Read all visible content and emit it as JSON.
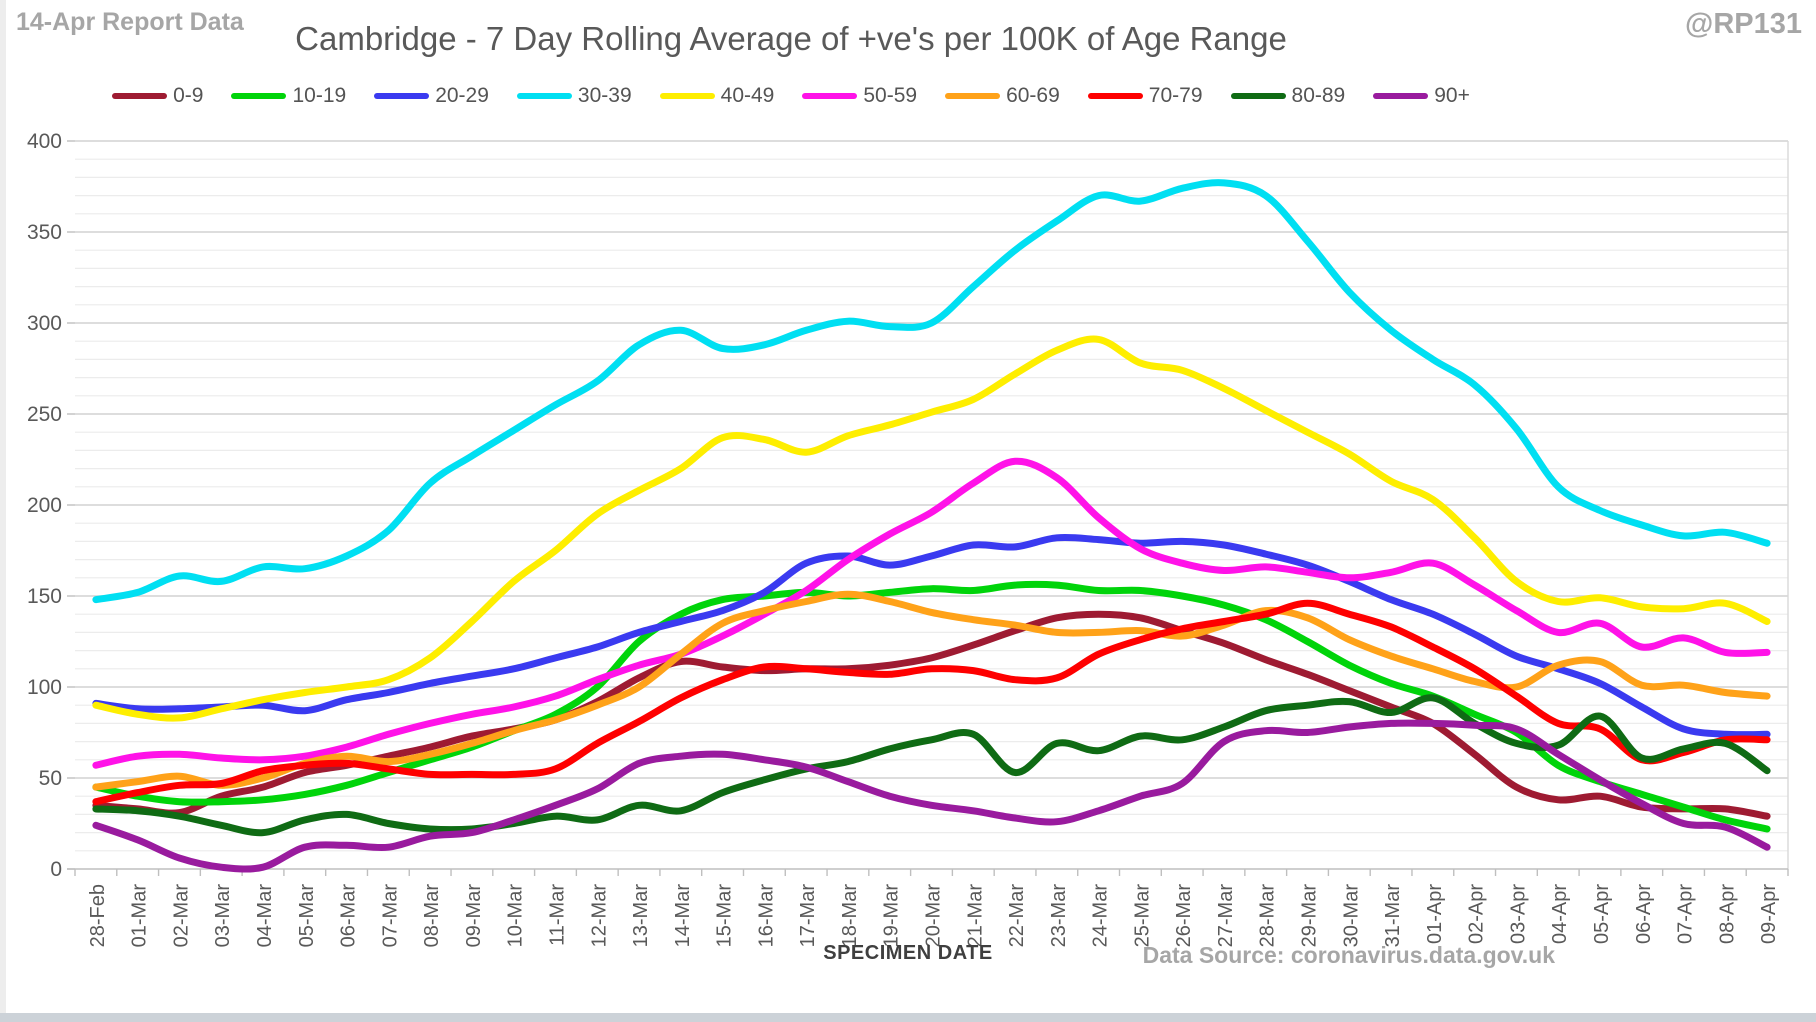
{
  "header": {
    "report_note": "14-Apr Report Data",
    "handle": "@RP131"
  },
  "footer": {
    "data_source": "Data Source: coronavirus.data.gov.uk"
  },
  "chart_data": {
    "type": "line",
    "title": "Cambridge - 7 Day Rolling Average of +ve's per 100K of Age Range",
    "xlabel": "SPECIMEN DATE",
    "ylabel": "",
    "ylim": [
      0,
      400
    ],
    "y_major_step": 50,
    "y_minor_step": 10,
    "grid": true,
    "legend_position": "top",
    "categories": [
      "28-Feb",
      "01-Mar",
      "02-Mar",
      "03-Mar",
      "04-Mar",
      "05-Mar",
      "06-Mar",
      "07-Mar",
      "08-Mar",
      "09-Mar",
      "10-Mar",
      "11-Mar",
      "12-Mar",
      "13-Mar",
      "14-Mar",
      "15-Mar",
      "16-Mar",
      "17-Mar",
      "18-Mar",
      "19-Mar",
      "20-Mar",
      "21-Mar",
      "22-Mar",
      "23-Mar",
      "24-Mar",
      "25-Mar",
      "26-Mar",
      "27-Mar",
      "28-Mar",
      "29-Mar",
      "30-Mar",
      "31-Mar",
      "01-Apr",
      "02-Apr",
      "03-Apr",
      "04-Apr",
      "05-Apr",
      "06-Apr",
      "07-Apr",
      "08-Apr",
      "09-Apr"
    ],
    "series": [
      {
        "name": "0-9",
        "color": "#9e1b32",
        "values": [
          35,
          33,
          31,
          40,
          45,
          53,
          57,
          62,
          67,
          73,
          77,
          82,
          92,
          105,
          114,
          111,
          109,
          110,
          110,
          112,
          116,
          123,
          131,
          138,
          140,
          138,
          131,
          124,
          115,
          107,
          98,
          89,
          80,
          63,
          45,
          38,
          40,
          34,
          33,
          33,
          29
        ]
      },
      {
        "name": "10-19",
        "color": "#00d40a",
        "values": [
          45,
          40,
          37,
          37,
          38,
          41,
          46,
          53,
          60,
          67,
          76,
          85,
          100,
          125,
          140,
          148,
          150,
          152,
          150,
          152,
          154,
          153,
          156,
          156,
          153,
          153,
          150,
          145,
          137,
          125,
          112,
          102,
          95,
          85,
          75,
          57,
          48,
          41,
          34,
          27,
          22
        ]
      },
      {
        "name": "20-29",
        "color": "#3a3af0",
        "values": [
          91,
          88,
          88,
          89,
          90,
          87,
          93,
          97,
          102,
          106,
          110,
          116,
          122,
          130,
          136,
          142,
          152,
          168,
          172,
          167,
          172,
          178,
          177,
          182,
          181,
          179,
          180,
          178,
          173,
          167,
          158,
          148,
          140,
          129,
          117,
          110,
          102,
          89,
          77,
          74,
          74
        ]
      },
      {
        "name": "30-39",
        "color": "#00dff2",
        "values": [
          148,
          152,
          161,
          158,
          166,
          165,
          172,
          186,
          212,
          227,
          241,
          255,
          268,
          288,
          296,
          286,
          288,
          296,
          301,
          298,
          300,
          320,
          340,
          356,
          370,
          367,
          374,
          377,
          370,
          345,
          317,
          296,
          280,
          266,
          242,
          210,
          197,
          189,
          183,
          185,
          179
        ]
      },
      {
        "name": "40-49",
        "color": "#feee00",
        "values": [
          90,
          85,
          83,
          88,
          93,
          97,
          100,
          104,
          116,
          136,
          158,
          175,
          195,
          208,
          220,
          237,
          236,
          229,
          238,
          244,
          251,
          258,
          272,
          285,
          291,
          278,
          274,
          264,
          252,
          240,
          228,
          213,
          203,
          182,
          158,
          147,
          149,
          144,
          143,
          146,
          136
        ]
      },
      {
        "name": "50-59",
        "color": "#ff12e8",
        "values": [
          57,
          62,
          63,
          61,
          60,
          62,
          67,
          74,
          80,
          85,
          89,
          95,
          104,
          112,
          118,
          128,
          140,
          153,
          170,
          184,
          196,
          212,
          224,
          215,
          193,
          176,
          168,
          164,
          166,
          163,
          160,
          163,
          168,
          156,
          142,
          130,
          135,
          122,
          127,
          119,
          119
        ]
      },
      {
        "name": "60-69",
        "color": "#ffa219",
        "values": [
          45,
          48,
          51,
          46,
          50,
          58,
          62,
          59,
          63,
          69,
          76,
          82,
          90,
          100,
          118,
          135,
          142,
          147,
          151,
          147,
          141,
          137,
          134,
          130,
          130,
          131,
          128,
          134,
          142,
          138,
          126,
          117,
          110,
          103,
          100,
          112,
          114,
          101,
          101,
          97,
          95
        ]
      },
      {
        "name": "70-79",
        "color": "#fe0000",
        "values": [
          37,
          42,
          46,
          47,
          54,
          57,
          58,
          55,
          52,
          52,
          52,
          55,
          69,
          81,
          94,
          104,
          111,
          110,
          108,
          107,
          110,
          109,
          104,
          105,
          118,
          126,
          132,
          136,
          140,
          146,
          140,
          133,
          122,
          110,
          95,
          80,
          77,
          60,
          64,
          71,
          71
        ]
      },
      {
        "name": "80-89",
        "color": "#0f6b14",
        "values": [
          33,
          32,
          29,
          24,
          20,
          27,
          30,
          25,
          22,
          22,
          25,
          29,
          27,
          35,
          32,
          42,
          49,
          55,
          59,
          66,
          71,
          74,
          53,
          69,
          65,
          73,
          71,
          78,
          87,
          90,
          92,
          86,
          94,
          80,
          69,
          68,
          84,
          61,
          66,
          69,
          54
        ]
      },
      {
        "name": "90+",
        "color": "#991b9e",
        "values": [
          24,
          16,
          6,
          1,
          1,
          12,
          13,
          12,
          18,
          20,
          27,
          35,
          44,
          58,
          62,
          63,
          60,
          56,
          48,
          40,
          35,
          32,
          28,
          26,
          32,
          40,
          47,
          70,
          76,
          75,
          78,
          80,
          80,
          79,
          77,
          63,
          49,
          36,
          25,
          23,
          12
        ]
      }
    ],
    "style": {
      "minor_grid_color": "#ececec",
      "major_grid_color": "#d2d2d2",
      "axis_line_color": "#bfbfbf",
      "plot_border_color": "#d9d9d9",
      "tick_label_color": "#595959",
      "line_width": 7
    }
  }
}
